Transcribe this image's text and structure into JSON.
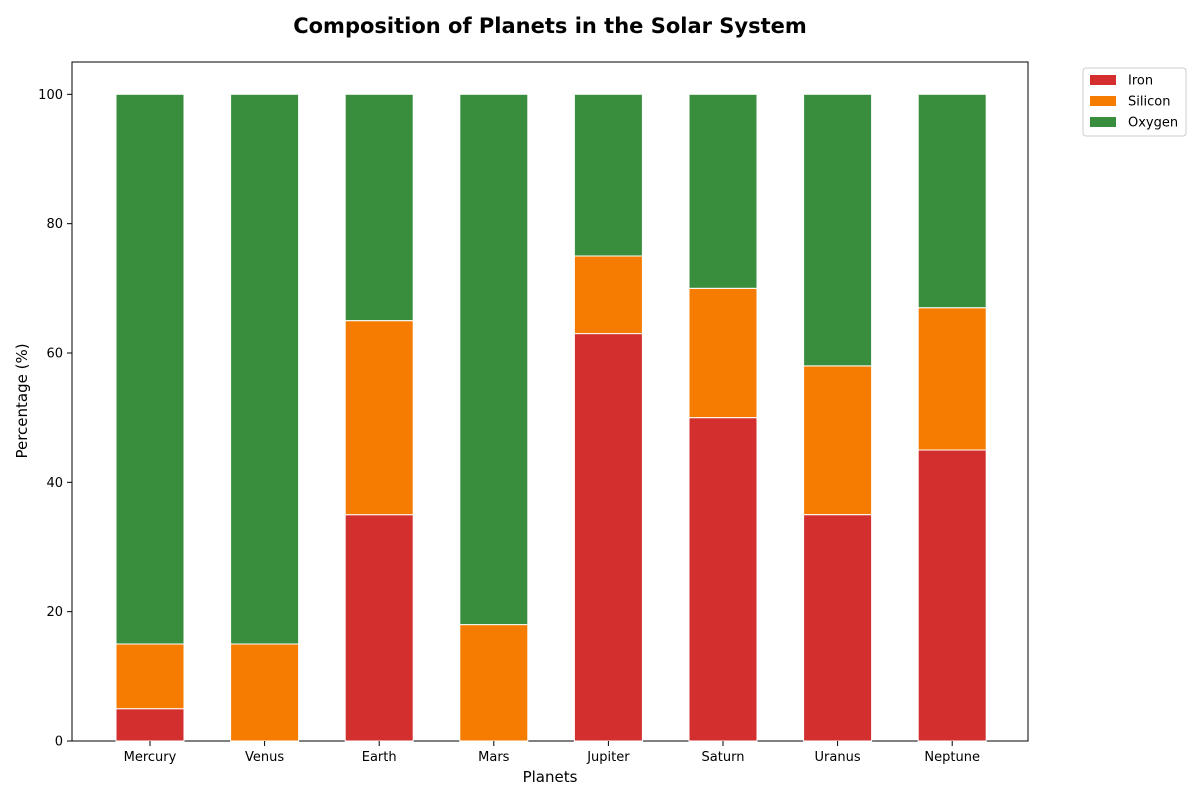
{
  "chart_data": {
    "type": "bar",
    "stacked": true,
    "title": "Composition of Planets in the Solar System",
    "xlabel": "Planets",
    "ylabel": "Percentage (%)",
    "categories": [
      "Mercury",
      "Venus",
      "Earth",
      "Mars",
      "Jupiter",
      "Saturn",
      "Uranus",
      "Neptune"
    ],
    "series": [
      {
        "name": "Iron",
        "color": "#d32f2f",
        "values": [
          5,
          0,
          35,
          0,
          63,
          50,
          35,
          45
        ]
      },
      {
        "name": "Silicon",
        "color": "#f57c00",
        "values": [
          10,
          15,
          30,
          18,
          12,
          20,
          23,
          22
        ]
      },
      {
        "name": "Oxygen",
        "color": "#388e3c",
        "values": [
          85,
          85,
          35,
          82,
          25,
          30,
          42,
          33
        ]
      }
    ],
    "ylim": [
      0,
      105
    ],
    "yticks": [
      0,
      20,
      40,
      60,
      80,
      100
    ],
    "grid": false,
    "legend_position": "outside-top-right"
  }
}
